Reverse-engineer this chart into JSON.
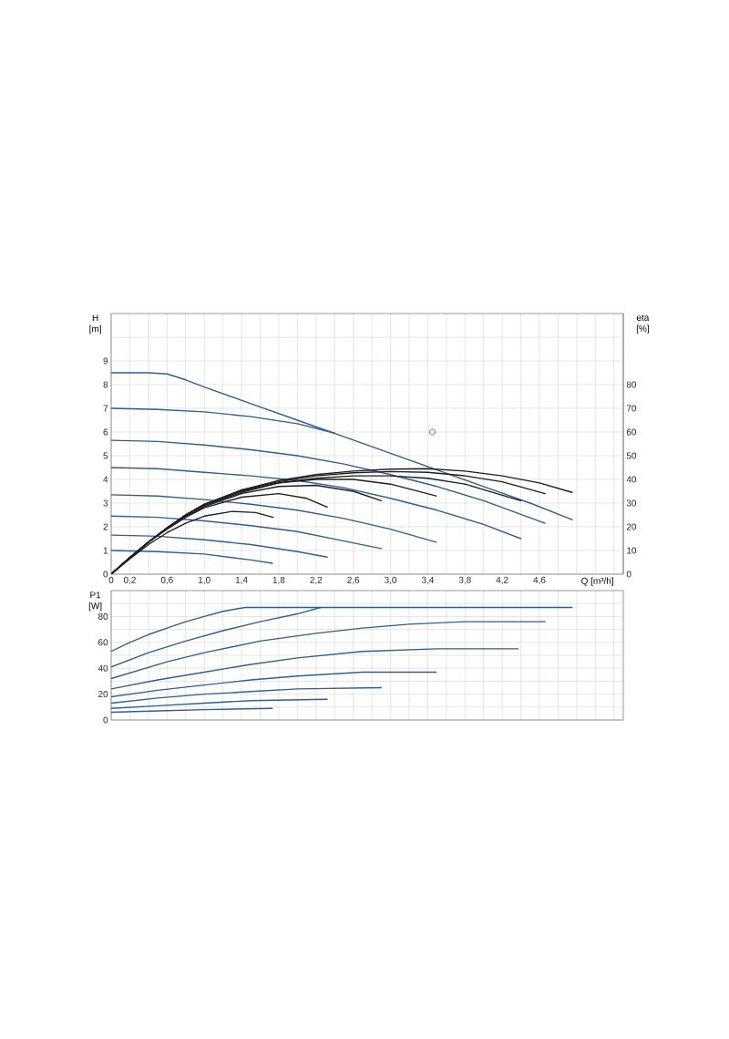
{
  "chart_data": [
    {
      "type": "line",
      "xlabel": "Q [m³/h]",
      "ylabel": "H [m]",
      "y2label": "eta [%]",
      "xlim": [
        0,
        5.5
      ],
      "xticks": [
        0,
        {
          "value": 0.2,
          "label": "0,2"
        },
        {
          "value": 0.4,
          "label": null
        },
        {
          "value": 0.6,
          "label": "0,6"
        },
        {
          "value": 0.8,
          "label": null
        },
        {
          "value": 1.0,
          "label": "1,0"
        },
        {
          "value": 1.2,
          "label": null
        },
        {
          "value": 1.4,
          "label": "1,4"
        },
        {
          "value": 1.6,
          "label": null
        },
        {
          "value": 1.8,
          "label": "1,8"
        },
        {
          "value": 2.0,
          "label": null
        },
        {
          "value": 2.2,
          "label": "2,2"
        },
        {
          "value": 2.4,
          "label": null
        },
        {
          "value": 2.6,
          "label": "2,6"
        },
        {
          "value": 2.8,
          "label": null
        },
        {
          "value": 3.0,
          "label": "3,0"
        },
        {
          "value": 3.2,
          "label": null
        },
        {
          "value": 3.4,
          "label": "3,4"
        },
        {
          "value": 3.6,
          "label": null
        },
        {
          "value": 3.8,
          "label": "3,8"
        },
        {
          "value": 4.0,
          "label": null
        },
        {
          "value": 4.2,
          "label": "4,2"
        },
        {
          "value": 4.4,
          "label": null
        },
        {
          "value": 4.6,
          "label": "4,6"
        },
        {
          "value": 4.8,
          "label": null
        },
        {
          "value": 5.0,
          "label": null
        },
        {
          "value": 5.2,
          "label": null
        },
        {
          "value": 5.4,
          "label": null
        }
      ],
      "ylim": [
        0,
        11
      ],
      "yticks": [
        0,
        1,
        2,
        3,
        4,
        5,
        6,
        7,
        8,
        9,
        {
          "value": 10,
          "label": null
        }
      ],
      "y2lim": [
        0,
        110
      ],
      "y2ticks": [
        0,
        10,
        20,
        30,
        40,
        50,
        60,
        70,
        80
      ],
      "grid": true,
      "marker": "none",
      "line_style": "solid",
      "series": [
        {
          "color": "#2f5f8f",
          "x": [
            0,
            0.2,
            0.4,
            0.6,
            0.8,
            1.0,
            1.5,
            2.0,
            2.5,
            3.0,
            3.5,
            4.0,
            4.5,
            4.95
          ],
          "values": [
            8.5,
            8.5,
            8.5,
            8.45,
            8.2,
            7.9,
            7.2,
            6.5,
            5.8,
            5.1,
            4.4,
            3.7,
            3.0,
            2.3
          ]
        },
        {
          "color": "#2f5f8f",
          "x": [
            0,
            0.5,
            1.0,
            1.5,
            2.0,
            2.4
          ],
          "values": [
            7.0,
            6.95,
            6.85,
            6.65,
            6.35,
            5.95
          ]
        },
        {
          "color": "#2f5f8f",
          "x": [
            0,
            0.5,
            1.0,
            1.5,
            2.0,
            2.5,
            3.0,
            3.5,
            4.0,
            4.66
          ],
          "values": [
            5.65,
            5.6,
            5.45,
            5.25,
            5.0,
            4.65,
            4.2,
            3.7,
            3.1,
            2.15
          ]
        },
        {
          "color": "#2f5f8f",
          "x": [
            0,
            0.5,
            1.0,
            1.5,
            2.0,
            2.5,
            3.0,
            3.5,
            4.0,
            4.4
          ],
          "values": [
            4.5,
            4.45,
            4.3,
            4.15,
            3.95,
            3.65,
            3.2,
            2.7,
            2.1,
            1.5
          ]
        },
        {
          "color": "#2f5f8f",
          "x": [
            0,
            0.5,
            1.0,
            1.5,
            2.0,
            2.5,
            3.0,
            3.49
          ],
          "values": [
            3.35,
            3.3,
            3.15,
            2.95,
            2.7,
            2.35,
            1.9,
            1.35
          ]
        },
        {
          "color": "#2f5f8f",
          "x": [
            0,
            0.5,
            1.0,
            1.5,
            2.0,
            2.5,
            2.9
          ],
          "values": [
            2.45,
            2.4,
            2.25,
            2.05,
            1.8,
            1.4,
            1.08
          ]
        },
        {
          "color": "#2f5f8f",
          "x": [
            0,
            0.5,
            1.0,
            1.5,
            2.0,
            2.32
          ],
          "values": [
            1.65,
            1.6,
            1.45,
            1.25,
            0.95,
            0.72
          ]
        },
        {
          "color": "#2f5f8f",
          "x": [
            0,
            0.5,
            1.0,
            1.5,
            1.73
          ],
          "values": [
            1.0,
            0.95,
            0.85,
            0.6,
            0.46
          ]
        },
        {
          "axis": "y2",
          "color": "#1e1e1e",
          "x": [
            0,
            0.2,
            0.4,
            0.6,
            0.8,
            1.0,
            1.4,
            1.8,
            2.2,
            2.6,
            3.0,
            3.4,
            3.8,
            4.2,
            4.6,
            4.95
          ],
          "values": [
            0,
            7,
            13.5,
            19.5,
            25,
            29.5,
            35.5,
            39.5,
            42,
            43.5,
            44.3,
            44.5,
            43.5,
            41.5,
            38.5,
            34.5
          ]
        },
        {
          "axis": "y2",
          "color": "#1e1e1e",
          "x": [
            0,
            0.2,
            0.4,
            0.6,
            0.8,
            1.0,
            1.4,
            1.8,
            2.2,
            2.6,
            3.0,
            3.4,
            3.8,
            4.2,
            4.66
          ],
          "values": [
            0,
            7,
            13.5,
            19.5,
            25,
            29.5,
            35.5,
            39,
            41.5,
            42.8,
            43.3,
            43,
            41.5,
            39,
            34
          ]
        },
        {
          "axis": "y2",
          "color": "#1e1e1e",
          "x": [
            0,
            0.2,
            0.4,
            0.6,
            0.8,
            1.0,
            1.4,
            1.8,
            2.2,
            2.6,
            3.0,
            3.4,
            3.8,
            4.1,
            4.4
          ],
          "values": [
            0,
            7,
            13.5,
            19.5,
            25,
            29.5,
            35,
            38.5,
            40.5,
            41.5,
            41.5,
            40.5,
            38,
            34.5,
            31
          ]
        },
        {
          "axis": "y2",
          "color": "#1e1e1e",
          "x": [
            0,
            0.2,
            0.4,
            0.6,
            0.8,
            1.0,
            1.4,
            1.8,
            2.2,
            2.6,
            3.0,
            3.49
          ],
          "values": [
            0,
            7,
            13.5,
            19.5,
            25,
            29,
            34.5,
            38.5,
            40,
            40,
            38,
            33
          ]
        },
        {
          "axis": "y2",
          "color": "#1e1e1e",
          "x": [
            0,
            0.2,
            0.4,
            0.6,
            0.8,
            1.0,
            1.4,
            1.8,
            2.2,
            2.6,
            2.9
          ],
          "values": [
            0,
            7,
            13.5,
            19.5,
            24.5,
            28.5,
            34,
            37,
            37.5,
            35,
            31
          ]
        },
        {
          "axis": "y2",
          "color": "#1e1e1e",
          "x": [
            0,
            0.2,
            0.4,
            0.6,
            0.8,
            1.0,
            1.4,
            1.8,
            2.1,
            2.32
          ],
          "values": [
            0,
            7,
            13.5,
            19,
            24,
            28,
            32.5,
            34,
            32,
            28.3
          ]
        },
        {
          "axis": "y2",
          "color": "#1e1e1e",
          "x": [
            0,
            0.2,
            0.4,
            0.6,
            0.8,
            1.0,
            1.3,
            1.55,
            1.74
          ],
          "values": [
            0,
            6.5,
            12.5,
            17.5,
            21.5,
            24.5,
            26.5,
            26,
            24
          ]
        },
        {
          "type": "scatter",
          "marker": "circle",
          "color": "#d05050",
          "x": [
            3.45
          ],
          "values": [
            6.0
          ]
        }
      ]
    },
    {
      "type": "line",
      "ylabel": "P1 [W]",
      "xlim": [
        0,
        5.5
      ],
      "xticks": [
        0,
        0.2,
        0.4,
        0.6,
        0.8,
        1.0,
        1.2,
        1.4,
        1.6,
        1.8,
        2.0,
        2.2,
        2.4,
        2.6,
        2.8,
        3.0,
        3.2,
        3.4,
        3.6,
        3.8,
        4.0,
        4.2,
        4.4,
        4.6,
        4.8,
        5.0,
        5.2,
        5.4
      ],
      "ylim": [
        0,
        100
      ],
      "yticks": [
        0,
        {
          "value": 10,
          "label": null
        },
        20,
        {
          "value": 30,
          "label": null
        },
        40,
        {
          "value": 50,
          "label": null
        },
        60,
        {
          "value": 70,
          "label": null
        },
        80,
        {
          "value": 90,
          "label": null
        }
      ],
      "grid": true,
      "tick_labels": "y",
      "marker": "none",
      "line_style": "solid",
      "series": [
        {
          "color": "#2f5f8f",
          "x": [
            0,
            0.2,
            0.4,
            0.6,
            0.8,
            1.0,
            1.2,
            1.44,
            4.95
          ],
          "values": [
            53,
            60,
            66,
            71,
            76,
            80,
            84,
            87,
            87
          ]
        },
        {
          "color": "#2f5f8f",
          "x": [
            0,
            0.4,
            0.8,
            1.2,
            1.6,
            2.0,
            2.25
          ],
          "values": [
            41,
            52,
            61,
            69,
            76,
            82,
            87
          ]
        },
        {
          "color": "#2f5f8f",
          "x": [
            0,
            0.6,
            1.0,
            1.6,
            2.2,
            2.7,
            3.2,
            3.8,
            4.66
          ],
          "values": [
            32,
            45,
            52,
            61,
            67,
            71,
            74,
            76,
            76
          ]
        },
        {
          "color": "#2f5f8f",
          "x": [
            0,
            0.5,
            1.0,
            1.5,
            2.0,
            2.7,
            3.5,
            4.37
          ],
          "values": [
            24,
            31,
            37,
            43,
            48,
            53,
            55,
            55
          ]
        },
        {
          "color": "#2f5f8f",
          "x": [
            0,
            0.5,
            1.0,
            1.5,
            2.0,
            2.7,
            3.49
          ],
          "values": [
            18,
            23,
            27,
            31,
            34,
            37,
            37
          ]
        },
        {
          "color": "#2f5f8f",
          "x": [
            0,
            0.5,
            1.0,
            1.5,
            2.0,
            2.9
          ],
          "values": [
            13,
            17,
            20,
            22,
            24,
            25
          ]
        },
        {
          "color": "#2f5f8f",
          "x": [
            0,
            0.5,
            1.0,
            1.5,
            2.32
          ],
          "values": [
            9,
            11,
            13,
            15,
            16
          ]
        },
        {
          "color": "#2f5f8f",
          "x": [
            0,
            0.5,
            1.0,
            1.73
          ],
          "values": [
            6,
            7,
            8,
            9
          ]
        }
      ]
    }
  ]
}
